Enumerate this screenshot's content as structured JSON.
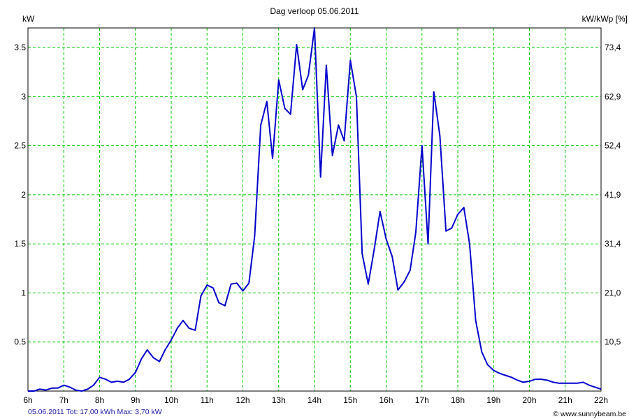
{
  "chart_data": {
    "type": "line",
    "title": "Dag  verloop 05.06.2011",
    "ylabel_left": "kW",
    "ylabel_right": "kW/kWp [%]",
    "x_ticks": [
      "6h",
      "7h",
      "8h",
      "9h",
      "10h",
      "11h",
      "12h",
      "13h",
      "14h",
      "15h",
      "16h",
      "17h",
      "18h",
      "19h",
      "20h",
      "21h",
      "22h"
    ],
    "y_ticks_left": [
      {
        "value": 0.5,
        "label": "0.5"
      },
      {
        "value": 1,
        "label": "1"
      },
      {
        "value": 1.5,
        "label": "1.5"
      },
      {
        "value": 2,
        "label": "2"
      },
      {
        "value": 2.5,
        "label": "2.5"
      },
      {
        "value": 3,
        "label": "3"
      },
      {
        "value": 3.5,
        "label": "3.5"
      }
    ],
    "y_ticks_right": [
      {
        "value": 0.5,
        "label": "10,5"
      },
      {
        "value": 1,
        "label": "21,0"
      },
      {
        "value": 1.5,
        "label": "31,4"
      },
      {
        "value": 2,
        "label": "41,9"
      },
      {
        "value": 2.5,
        "label": "52,4"
      },
      {
        "value": 3,
        "label": "62,9"
      },
      {
        "value": 3.5,
        "label": "73,4"
      }
    ],
    "xlim": [
      6,
      22
    ],
    "ylim": [
      0,
      3.7
    ],
    "grid": true,
    "series": [
      {
        "color": "#0000cc",
        "points": [
          [
            6.0,
            0.0
          ],
          [
            6.17,
            0.0
          ],
          [
            6.33,
            0.02
          ],
          [
            6.5,
            0.01
          ],
          [
            6.67,
            0.03
          ],
          [
            6.83,
            0.03
          ],
          [
            7.0,
            0.06
          ],
          [
            7.17,
            0.04
          ],
          [
            7.33,
            0.01
          ],
          [
            7.5,
            0.0
          ],
          [
            7.67,
            0.02
          ],
          [
            7.83,
            0.06
          ],
          [
            8.0,
            0.14
          ],
          [
            8.17,
            0.12
          ],
          [
            8.33,
            0.09
          ],
          [
            8.5,
            0.1
          ],
          [
            8.67,
            0.09
          ],
          [
            8.83,
            0.12
          ],
          [
            9.0,
            0.19
          ],
          [
            9.17,
            0.33
          ],
          [
            9.33,
            0.42
          ],
          [
            9.5,
            0.34
          ],
          [
            9.67,
            0.3
          ],
          [
            9.83,
            0.42
          ],
          [
            10.0,
            0.52
          ],
          [
            10.17,
            0.64
          ],
          [
            10.33,
            0.72
          ],
          [
            10.5,
            0.64
          ],
          [
            10.67,
            0.62
          ],
          [
            10.83,
            0.97
          ],
          [
            11.0,
            1.08
          ],
          [
            11.17,
            1.05
          ],
          [
            11.33,
            0.9
          ],
          [
            11.5,
            0.87
          ],
          [
            11.67,
            1.09
          ],
          [
            11.83,
            1.1
          ],
          [
            12.0,
            1.02
          ],
          [
            12.17,
            1.1
          ],
          [
            12.33,
            1.58
          ],
          [
            12.5,
            2.71
          ],
          [
            12.67,
            2.95
          ],
          [
            12.83,
            2.37
          ],
          [
            13.0,
            3.17
          ],
          [
            13.17,
            2.88
          ],
          [
            13.33,
            2.82
          ],
          [
            13.5,
            3.53
          ],
          [
            13.67,
            3.07
          ],
          [
            13.83,
            3.22
          ],
          [
            14.0,
            3.7
          ],
          [
            14.17,
            2.18
          ],
          [
            14.33,
            3.32
          ],
          [
            14.5,
            2.4
          ],
          [
            14.67,
            2.71
          ],
          [
            14.83,
            2.55
          ],
          [
            15.0,
            3.37
          ],
          [
            15.17,
            3.0
          ],
          [
            15.33,
            1.4
          ],
          [
            15.5,
            1.09
          ],
          [
            15.67,
            1.45
          ],
          [
            15.83,
            1.83
          ],
          [
            16.0,
            1.55
          ],
          [
            16.17,
            1.37
          ],
          [
            16.33,
            1.03
          ],
          [
            16.5,
            1.11
          ],
          [
            16.67,
            1.23
          ],
          [
            16.83,
            1.62
          ],
          [
            17.0,
            2.5
          ],
          [
            17.17,
            1.5
          ],
          [
            17.33,
            3.05
          ],
          [
            17.5,
            2.6
          ],
          [
            17.67,
            1.63
          ],
          [
            17.83,
            1.66
          ],
          [
            18.0,
            1.8
          ],
          [
            18.17,
            1.87
          ],
          [
            18.33,
            1.5
          ],
          [
            18.5,
            0.72
          ],
          [
            18.67,
            0.4
          ],
          [
            18.83,
            0.27
          ],
          [
            19.0,
            0.21
          ],
          [
            19.17,
            0.18
          ],
          [
            19.33,
            0.16
          ],
          [
            19.5,
            0.14
          ],
          [
            19.67,
            0.11
          ],
          [
            19.83,
            0.09
          ],
          [
            20.0,
            0.1
          ],
          [
            20.17,
            0.12
          ],
          [
            20.33,
            0.12
          ],
          [
            20.5,
            0.11
          ],
          [
            20.67,
            0.09
          ],
          [
            20.83,
            0.08
          ],
          [
            21.0,
            0.08
          ],
          [
            21.17,
            0.08
          ],
          [
            21.33,
            0.08
          ],
          [
            21.5,
            0.09
          ],
          [
            21.67,
            0.06
          ],
          [
            21.83,
            0.04
          ],
          [
            22.0,
            0.02
          ]
        ]
      }
    ]
  },
  "colors": {
    "line": "#0000cc",
    "grid": "#00cc00",
    "frame": "#000000",
    "footer_text": "#1a1aa6"
  },
  "footer": {
    "summary": "05.06.2011 Tot: 17,00 kWh Max: 3,70 kW",
    "credit": "© www.sunnybeam.be"
  }
}
